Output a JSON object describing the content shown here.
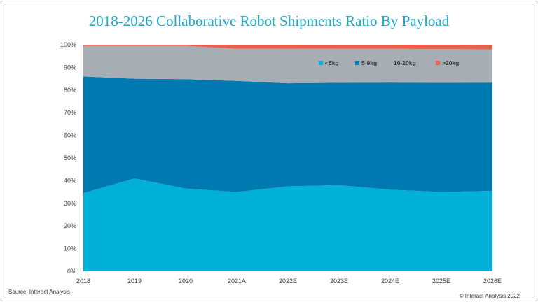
{
  "chart_data": {
    "type": "area",
    "title": "2018-2026 Collaborative Robot Shipments Ratio By Payload",
    "categories": [
      "2018",
      "2019",
      "2020",
      "2021A",
      "2022E",
      "2023E",
      "2024E",
      "2025E",
      "2026E"
    ],
    "series": [
      {
        "name": "<5kg",
        "color": "#00b0d6",
        "values": [
          34.5,
          41.0,
          36.5,
          35.0,
          37.5,
          38.0,
          36.0,
          35.0,
          35.5
        ]
      },
      {
        "name": "5-9kg",
        "color": "#0079b0",
        "values": [
          51.5,
          44.0,
          48.3,
          49.0,
          45.5,
          45.2,
          47.3,
          48.2,
          47.8
        ]
      },
      {
        "name": "10-20kg",
        "color": "#a7adb4",
        "values": [
          13.5,
          14.5,
          14.7,
          14.2,
          15.3,
          15.0,
          14.9,
          14.9,
          14.7
        ]
      },
      {
        "name": ">20kg",
        "color": "#e8614e",
        "values": [
          0.5,
          0.5,
          0.5,
          1.8,
          1.7,
          1.8,
          1.8,
          1.9,
          2.0
        ]
      }
    ],
    "ylim": [
      0,
      100
    ],
    "yticks": [
      "0%",
      "10%",
      "20%",
      "30%",
      "40%",
      "50%",
      "60%",
      "70%",
      "80%",
      "90%",
      "100%"
    ],
    "stacked": true,
    "grid": false,
    "legend_position": "top-right"
  },
  "footer": {
    "source": "Source: Interact Analysis",
    "copyright": "© Interact Analysis 2022"
  }
}
